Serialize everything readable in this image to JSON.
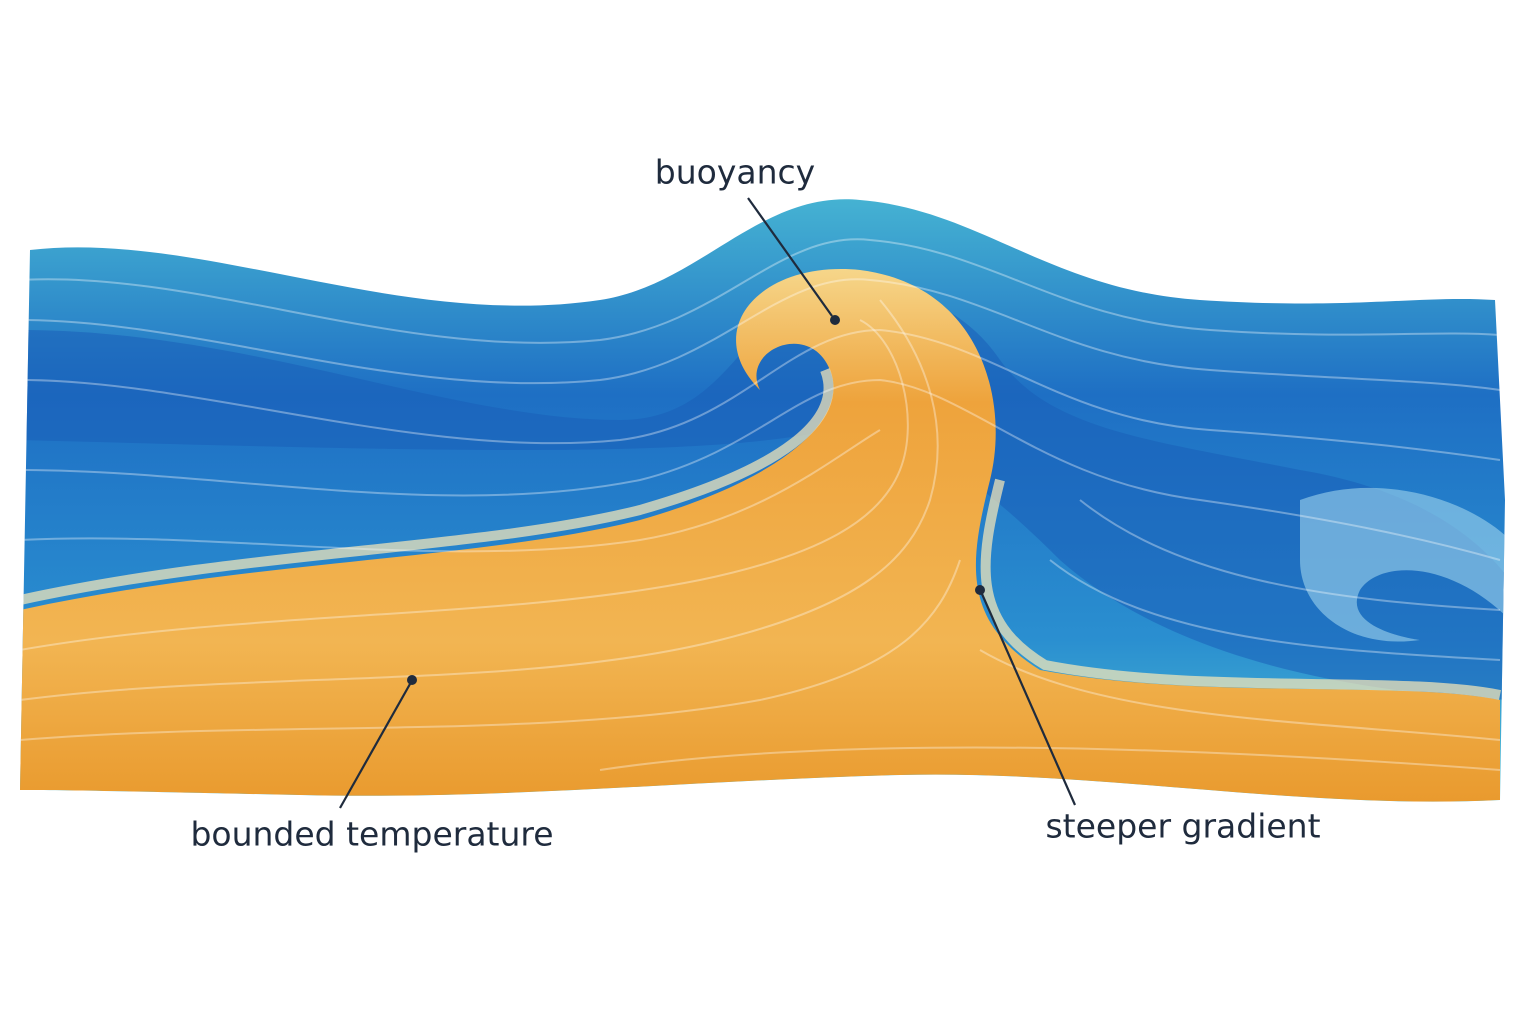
{
  "labels": [
    "buoyancy",
    "bounded temperature",
    "steeper gradient"
  ]
}
